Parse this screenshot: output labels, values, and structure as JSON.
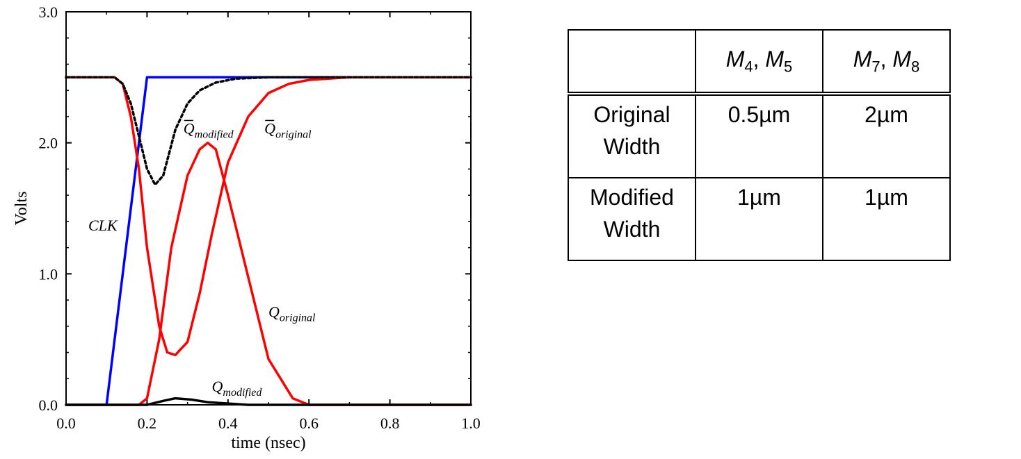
{
  "chart_data": {
    "type": "line",
    "xlabel": "time (nsec)",
    "ylabel": "Volts",
    "xlim": [
      0.0,
      1.0
    ],
    "ylim": [
      0.0,
      3.0
    ],
    "xticks": [
      "0.0",
      "0.2",
      "0.4",
      "0.6",
      "0.8",
      "1.0"
    ],
    "yticks": [
      "0.0",
      "1.0",
      "2.0",
      "3.0"
    ],
    "series": [
      {
        "name": "CLK",
        "color": "#0000ff",
        "style": "solid",
        "x": [
          0.0,
          0.1,
          0.2,
          1.0
        ],
        "y": [
          0.0,
          0.0,
          2.5,
          2.5
        ]
      },
      {
        "name": "Q original",
        "color": "#ff0000",
        "style": "solid",
        "x": [
          0.0,
          0.18,
          0.2,
          0.23,
          0.26,
          0.3,
          0.33,
          0.35,
          0.37,
          0.4,
          0.44,
          0.5,
          0.53,
          0.56,
          0.6,
          1.0
        ],
        "y": [
          0.0,
          0.0,
          0.05,
          0.5,
          1.2,
          1.75,
          1.95,
          2.0,
          1.95,
          1.6,
          1.1,
          0.35,
          0.2,
          0.05,
          0.0,
          0.0
        ]
      },
      {
        "name": "Q bar original",
        "color": "#ff0000",
        "style": "solid",
        "x": [
          0.0,
          0.12,
          0.14,
          0.16,
          0.18,
          0.2,
          0.23,
          0.25,
          0.27,
          0.3,
          0.33,
          0.36,
          0.4,
          0.45,
          0.5,
          0.55,
          0.6,
          0.7,
          1.0
        ],
        "y": [
          2.5,
          2.5,
          2.45,
          2.2,
          1.8,
          1.2,
          0.6,
          0.4,
          0.38,
          0.48,
          0.85,
          1.3,
          1.85,
          2.2,
          2.38,
          2.45,
          2.48,
          2.5,
          2.5
        ]
      },
      {
        "name": "Q bar modified",
        "color": "#000000",
        "style": "dotted",
        "x": [
          0.0,
          0.12,
          0.14,
          0.16,
          0.18,
          0.2,
          0.22,
          0.24,
          0.27,
          0.3,
          0.33,
          0.37,
          0.42,
          0.5,
          1.0
        ],
        "y": [
          2.5,
          2.5,
          2.45,
          2.3,
          2.05,
          1.8,
          1.68,
          1.75,
          2.1,
          2.3,
          2.4,
          2.46,
          2.49,
          2.5,
          2.5
        ]
      },
      {
        "name": "Q modified",
        "color": "#000000",
        "style": "solid",
        "x": [
          0.0,
          0.2,
          0.24,
          0.27,
          0.31,
          0.35,
          0.4,
          0.45,
          1.0
        ],
        "y": [
          0.0,
          0.0,
          0.03,
          0.05,
          0.04,
          0.02,
          0.01,
          0.0,
          0.0
        ]
      }
    ],
    "annotations": [
      {
        "id": "clk",
        "text": "CLK",
        "sub": "",
        "overbar": false,
        "x": 0.055,
        "y": 1.33
      },
      {
        "id": "qbar-modified",
        "text": "Q",
        "sub": "modified",
        "overbar": true,
        "x": 0.29,
        "y": 2.07
      },
      {
        "id": "qbar-original",
        "text": "Q",
        "sub": "original",
        "overbar": true,
        "x": 0.49,
        "y": 2.07
      },
      {
        "id": "q-original",
        "text": "Q",
        "sub": "original",
        "overbar": false,
        "x": 0.5,
        "y": 0.67
      },
      {
        "id": "q-modified",
        "text": "Q",
        "sub": "modified",
        "overbar": false,
        "x": 0.36,
        "y": 0.1
      }
    ]
  },
  "table": {
    "header": [
      {
        "base1": "M",
        "sub1": "4",
        "base2": "M",
        "sub2": "5"
      },
      {
        "base1": "M",
        "sub1": "7",
        "base2": "M",
        "sub2": "8"
      }
    ],
    "rows": [
      {
        "label1": "Original",
        "label2": "Width",
        "c1": "0.5µm",
        "c2": "2µm"
      },
      {
        "label1": "Modified",
        "label2": "Width",
        "c1": "1µm",
        "c2": "1µm"
      }
    ]
  }
}
